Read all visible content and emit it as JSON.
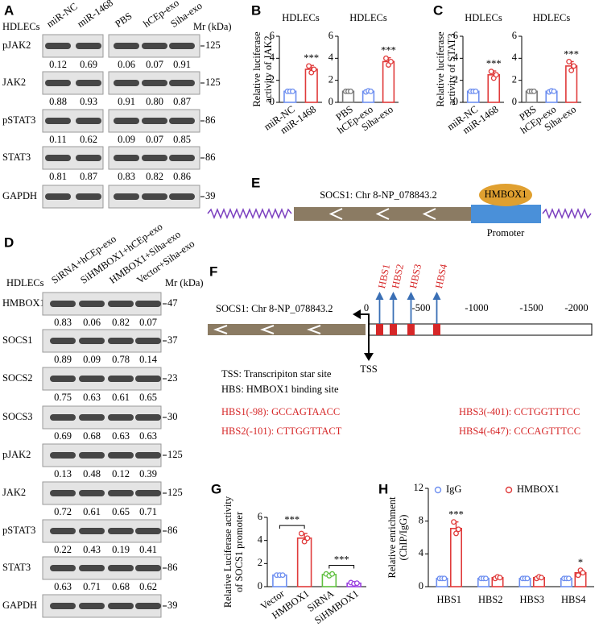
{
  "panels": [
    "A",
    "B",
    "C",
    "D",
    "E",
    "F",
    "G",
    "H"
  ],
  "panel_a": {
    "cell_line": "HDLECs",
    "lanes": [
      "miR-NC",
      "miR-1468",
      "PBS",
      "hCEp-exo",
      "Siha-exo"
    ],
    "mr_header": "Mr (kDa)",
    "rows": [
      {
        "protein": "pJAK2",
        "mr": "125",
        "quant": [
          "0.12",
          "0.69",
          "0.06",
          "0.07",
          "0.91"
        ]
      },
      {
        "protein": "JAK2",
        "mr": "125",
        "quant": [
          "0.88",
          "0.93",
          "0.91",
          "0.80",
          "0.87"
        ]
      },
      {
        "protein": "pSTAT3",
        "mr": "86",
        "quant": [
          "0.11",
          "0.62",
          "0.09",
          "0.07",
          "0.85"
        ]
      },
      {
        "protein": "STAT3",
        "mr": "86",
        "quant": [
          "0.81",
          "0.87",
          "0.83",
          "0.82",
          "0.86"
        ]
      },
      {
        "protein": "GAPDH",
        "mr": "39"
      }
    ]
  },
  "panel_d": {
    "cell_line": "HDLECs",
    "lanes": [
      "SiRNA+hCEp-exo",
      "SiHMBOX1+hCEp-exo",
      "HMBOX1+Siha-exo",
      "Vector+Siha-exo"
    ],
    "mr_header": "Mr (kDa)",
    "rows": [
      {
        "protein": "HMBOX1",
        "mr": "47",
        "quant": [
          "0.83",
          "0.06",
          "0.82",
          "0.07"
        ]
      },
      {
        "protein": "SOCS1",
        "mr": "37",
        "quant": [
          "0.89",
          "0.09",
          "0.78",
          "0.14"
        ]
      },
      {
        "protein": "SOCS2",
        "mr": "23",
        "quant": [
          "0.75",
          "0.63",
          "0.61",
          "0.65"
        ]
      },
      {
        "protein": "SOCS3",
        "mr": "30",
        "quant": [
          "0.69",
          "0.68",
          "0.63",
          "0.63"
        ]
      },
      {
        "protein": "pJAK2",
        "mr": "125",
        "quant": [
          "0.13",
          "0.48",
          "0.12",
          "0.39"
        ]
      },
      {
        "protein": "JAK2",
        "mr": "125",
        "quant": [
          "0.72",
          "0.61",
          "0.65",
          "0.71"
        ]
      },
      {
        "protein": "pSTAT3",
        "mr": "86",
        "quant": [
          "0.22",
          "0.43",
          "0.19",
          "0.41"
        ]
      },
      {
        "protein": "STAT3",
        "mr": "86",
        "quant": [
          "0.63",
          "0.71",
          "0.68",
          "0.62"
        ]
      },
      {
        "protein": "GAPDH",
        "mr": "39"
      }
    ]
  },
  "chart_data": [
    {
      "type": "bar",
      "title": "HDLECs",
      "y_label": [
        "Relative luciferase",
        "activity of JAK2"
      ],
      "ylim": [
        0,
        6
      ],
      "yticks": [
        0,
        2,
        4,
        6
      ],
      "categories": [
        "miR-NC",
        "miR-1468"
      ],
      "values": [
        1.0,
        3.0
      ],
      "errors": [
        0.06,
        0.35
      ],
      "colors": [
        "#6e8ff0",
        "#e03b3b"
      ],
      "points": [
        [
          1.0,
          1.0,
          1.0
        ],
        [
          3.3,
          2.7,
          3.0
        ]
      ],
      "annotations": [
        {
          "text": "***",
          "category": 1
        }
      ]
    },
    {
      "type": "bar",
      "title": "HDLECs",
      "ylim": [
        0,
        6
      ],
      "yticks": [
        0,
        2,
        4,
        6
      ],
      "categories": [
        "PBS",
        "hCEp-exo",
        "Siha-exo"
      ],
      "values": [
        1.0,
        1.0,
        3.7
      ],
      "errors": [
        0.05,
        0.08,
        0.35
      ],
      "colors": [
        "#777777",
        "#6e8ff0",
        "#e03b3b"
      ],
      "points": [
        [
          1.0,
          1.0,
          1.0
        ],
        [
          0.95,
          1.05,
          1.0
        ],
        [
          4.0,
          3.4,
          3.7
        ]
      ],
      "annotations": [
        {
          "text": "***",
          "category": 2
        }
      ]
    },
    {
      "type": "bar",
      "title": "HDLECs",
      "y_label": [
        "Relative luciferase",
        "activity of STAT3"
      ],
      "ylim": [
        0,
        6
      ],
      "yticks": [
        0,
        2,
        4,
        6
      ],
      "categories": [
        "miR-NC",
        "miR-1468"
      ],
      "values": [
        1.0,
        2.5
      ],
      "errors": [
        0.05,
        0.35
      ],
      "colors": [
        "#6e8ff0",
        "#e03b3b"
      ],
      "points": [
        [
          1.0,
          1.0,
          1.0
        ],
        [
          2.8,
          2.2,
          2.5
        ]
      ],
      "annotations": [
        {
          "text": "***",
          "category": 1
        }
      ]
    },
    {
      "type": "bar",
      "title": "HDLECs",
      "ylim": [
        0,
        6
      ],
      "yticks": [
        0,
        2,
        4,
        6
      ],
      "categories": [
        "PBS",
        "hCEp-exo",
        "Siha-exo"
      ],
      "values": [
        1.0,
        1.0,
        3.3
      ],
      "errors": [
        0.07,
        0.08,
        0.4
      ],
      "colors": [
        "#777777",
        "#6e8ff0",
        "#e03b3b"
      ],
      "points": [
        [
          1.0,
          1.0,
          1.0
        ],
        [
          0.95,
          1.05,
          1.0
        ],
        [
          3.7,
          2.9,
          3.3
        ]
      ],
      "annotations": [
        {
          "text": "***",
          "category": 2
        }
      ]
    },
    {
      "type": "bar",
      "y_label": [
        "Relative Luciferase activity",
        "of SOCS1 promoter"
      ],
      "ylim": [
        0,
        6
      ],
      "yticks": [
        0,
        2,
        4,
        6
      ],
      "categories": [
        "Vector",
        "HMBOX1",
        "SiRNA",
        "SiHMBOX1"
      ],
      "values": [
        1.0,
        4.2,
        1.05,
        0.3
      ],
      "errors": [
        0.07,
        0.4,
        0.1,
        0.07
      ],
      "colors": [
        "#6e8ff0",
        "#e03b3b",
        "#5fbf3f",
        "#9a3fe0"
      ],
      "points": [
        [
          1.0,
          1.0,
          1.0
        ],
        [
          4.6,
          3.9,
          4.2
        ],
        [
          1.1,
          0.95,
          1.1
        ],
        [
          0.35,
          0.25,
          0.3
        ]
      ],
      "annotations": [
        {
          "text": "***",
          "from": 0,
          "to": 1
        },
        {
          "text": "***",
          "from": 2,
          "to": 3
        }
      ]
    },
    {
      "type": "grouped_bar",
      "y_label": [
        "Relative enrichment",
        "(ChIP/IgG)"
      ],
      "ylim": [
        0,
        12
      ],
      "yticks": [
        0,
        4,
        8,
        12
      ],
      "categories": [
        "HBS1",
        "HBS2",
        "HBS3",
        "HBS4"
      ],
      "series": [
        {
          "name": "IgG",
          "color": "#6e8ff0",
          "values": [
            1.0,
            1.0,
            1.0,
            1.0
          ],
          "errors": [
            0.1,
            0.1,
            0.1,
            0.1
          ],
          "points": [
            [
              1.0,
              1.0,
              1.0
            ],
            [
              1.0,
              1.0,
              1.0
            ],
            [
              1.0,
              1.0,
              1.0
            ],
            [
              1.0,
              1.0,
              1.0
            ]
          ]
        },
        {
          "name": "HMBOX1",
          "color": "#e03b3b",
          "values": [
            7.1,
            1.1,
            1.1,
            1.7
          ],
          "errors": [
            0.8,
            0.15,
            0.15,
            0.35
          ],
          "points": [
            [
              7.9,
              6.5,
              7.0
            ],
            [
              1.0,
              1.2,
              1.1
            ],
            [
              1.0,
              1.2,
              1.1
            ],
            [
              1.4,
              2.0,
              1.7
            ]
          ]
        }
      ],
      "annotations": [
        {
          "text": "***",
          "category": 0,
          "series": 1
        },
        {
          "text": "*",
          "category": 3,
          "series": 1
        }
      ]
    }
  ],
  "panel_e": {
    "gene_label": "SOCS1: Chr 8-NP_078843.2",
    "factor": "HMBOX1",
    "promoter": "Promoter"
  },
  "panel_f": {
    "gene_label": "SOCS1: Chr 8-NP_078843.2",
    "scale": [
      "0",
      "-500",
      "-1000",
      "-1500",
      "-2000"
    ],
    "sites": [
      "HBS1",
      "HBS2",
      "HBS3",
      "HBS4"
    ],
    "legend": [
      "TSS: Transcripiton star site",
      "HBS: HMBOX1 binding site"
    ],
    "tss": "TSS",
    "sequences": [
      "HBS1(-98): GCCAGTAACC",
      "HBS2(-101): CTTGGTTACT",
      "HBS3(-401): CCTGGTTTCC",
      "HBS4(-647): CCCAGTTTCC"
    ]
  }
}
